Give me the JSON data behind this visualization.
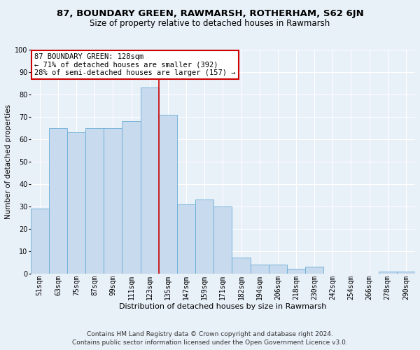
{
  "title": "87, BOUNDARY GREEN, RAWMARSH, ROTHERHAM, S62 6JN",
  "subtitle": "Size of property relative to detached houses in Rawmarsh",
  "xlabel": "Distribution of detached houses by size in Rawmarsh",
  "ylabel": "Number of detached properties",
  "categories": [
    "51sqm",
    "63sqm",
    "75sqm",
    "87sqm",
    "99sqm",
    "111sqm",
    "123sqm",
    "135sqm",
    "147sqm",
    "159sqm",
    "171sqm",
    "182sqm",
    "194sqm",
    "206sqm",
    "218sqm",
    "230sqm",
    "242sqm",
    "254sqm",
    "266sqm",
    "278sqm",
    "290sqm"
  ],
  "values": [
    29,
    65,
    63,
    65,
    65,
    68,
    83,
    71,
    31,
    33,
    30,
    7,
    4,
    4,
    2,
    3,
    0,
    0,
    0,
    1,
    1
  ],
  "bar_color": "#c8daee",
  "bar_edge_color": "#6aacd4",
  "background_color": "#e8f0f8",
  "grid_color": "#ffffff",
  "vline_x": 6.5,
  "vline_color": "#cc0000",
  "annotation_text": "87 BOUNDARY GREEN: 128sqm\n← 71% of detached houses are smaller (392)\n28% of semi-detached houses are larger (157) →",
  "annotation_box_color": "#ffffff",
  "annotation_box_edge_color": "#cc0000",
  "ylim": [
    0,
    100
  ],
  "yticks": [
    0,
    10,
    20,
    30,
    40,
    50,
    60,
    70,
    80,
    90,
    100
  ],
  "footer1": "Contains HM Land Registry data © Crown copyright and database right 2024.",
  "footer2": "Contains public sector information licensed under the Open Government Licence v3.0.",
  "title_fontsize": 9.5,
  "subtitle_fontsize": 8.5,
  "xlabel_fontsize": 8,
  "ylabel_fontsize": 7.5,
  "tick_fontsize": 7,
  "annotation_fontsize": 7.5,
  "footer_fontsize": 6.5
}
